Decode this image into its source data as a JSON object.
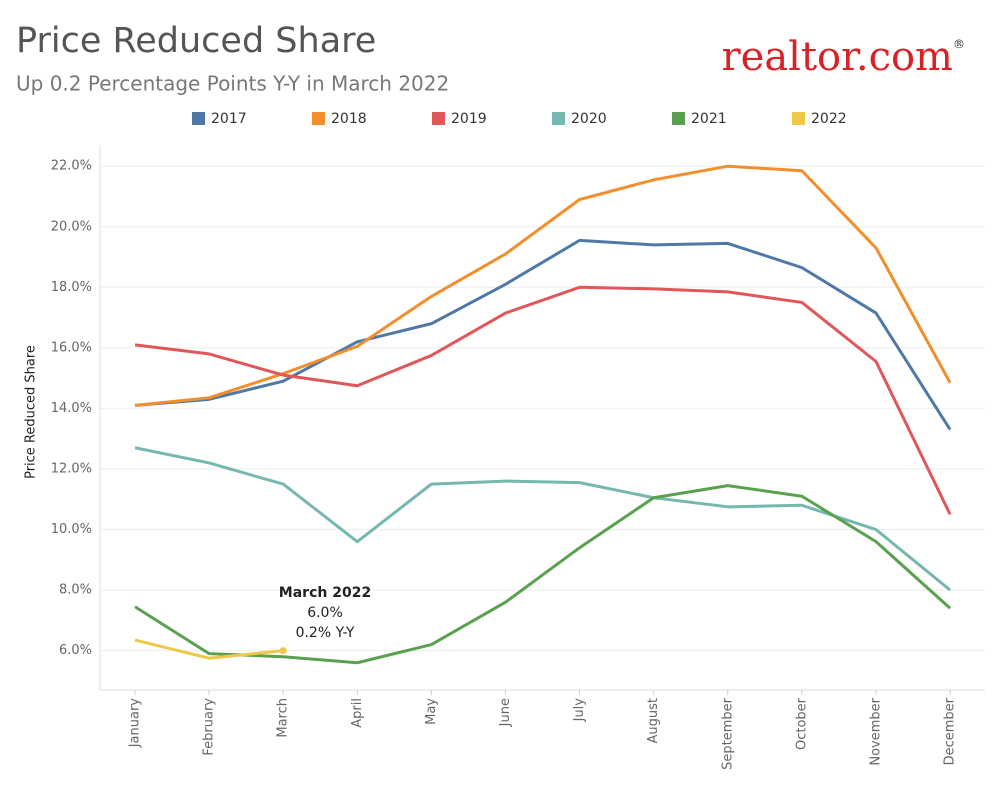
{
  "chart_data": {
    "type": "line",
    "title": "Price Reduced Share",
    "subtitle": "Up 0.2 Percentage Points Y-Y in March 2022",
    "logo": {
      "brand": "realtor",
      "suffix": ".com",
      "mark": "®"
    },
    "y_label": "Price Reduced Share",
    "categories": [
      "January",
      "February",
      "March",
      "April",
      "May",
      "June",
      "July",
      "August",
      "September",
      "October",
      "November",
      "December"
    ],
    "series": [
      {
        "name": "2017",
        "color": "#4e79a7",
        "values": [
          14.1,
          14.3,
          14.9,
          16.2,
          16.8,
          18.1,
          19.55,
          19.4,
          19.45,
          18.65,
          17.15,
          13.3
        ]
      },
      {
        "name": "2018",
        "color": "#f28e2b",
        "values": [
          14.1,
          14.35,
          15.15,
          16.05,
          17.7,
          19.1,
          20.9,
          21.55,
          22.0,
          21.85,
          19.3,
          14.85
        ]
      },
      {
        "name": "2019",
        "color": "#e15759",
        "values": [
          16.1,
          15.8,
          15.1,
          14.75,
          15.75,
          17.15,
          18.0,
          17.95,
          17.85,
          17.5,
          15.55,
          10.5
        ]
      },
      {
        "name": "2020",
        "color": "#76b7b2",
        "values": [
          12.7,
          12.2,
          11.5,
          9.6,
          11.5,
          11.6,
          11.55,
          11.05,
          10.75,
          10.8,
          10.0,
          8.0
        ]
      },
      {
        "name": "2021",
        "color": "#59a14f",
        "values": [
          7.45,
          5.9,
          5.8,
          5.6,
          6.2,
          7.6,
          9.4,
          11.05,
          11.45,
          11.1,
          9.6,
          7.4
        ]
      },
      {
        "name": "2022",
        "color": "#edc948",
        "values": [
          6.35,
          5.75,
          6.0,
          null,
          null,
          null,
          null,
          null,
          null,
          null,
          null,
          null
        ]
      }
    ],
    "annotation": {
      "lines": [
        "March 2022",
        "6.0%",
        "0.2% Y-Y"
      ]
    },
    "ylim": [
      4.7,
      22.7
    ],
    "yticks": [
      {
        "value": 6,
        "label": "6.0%"
      },
      {
        "value": 8,
        "label": "8.0%"
      },
      {
        "value": 10,
        "label": "10.0%"
      },
      {
        "value": 12,
        "label": "12.0%"
      },
      {
        "value": 14,
        "label": "14.0%"
      },
      {
        "value": 16,
        "label": "16.0%"
      },
      {
        "value": 18,
        "label": "18.0%"
      },
      {
        "value": 20,
        "label": "20.0%"
      },
      {
        "value": 22,
        "label": "22.0%"
      }
    ],
    "grid": true,
    "legend": "top"
  }
}
